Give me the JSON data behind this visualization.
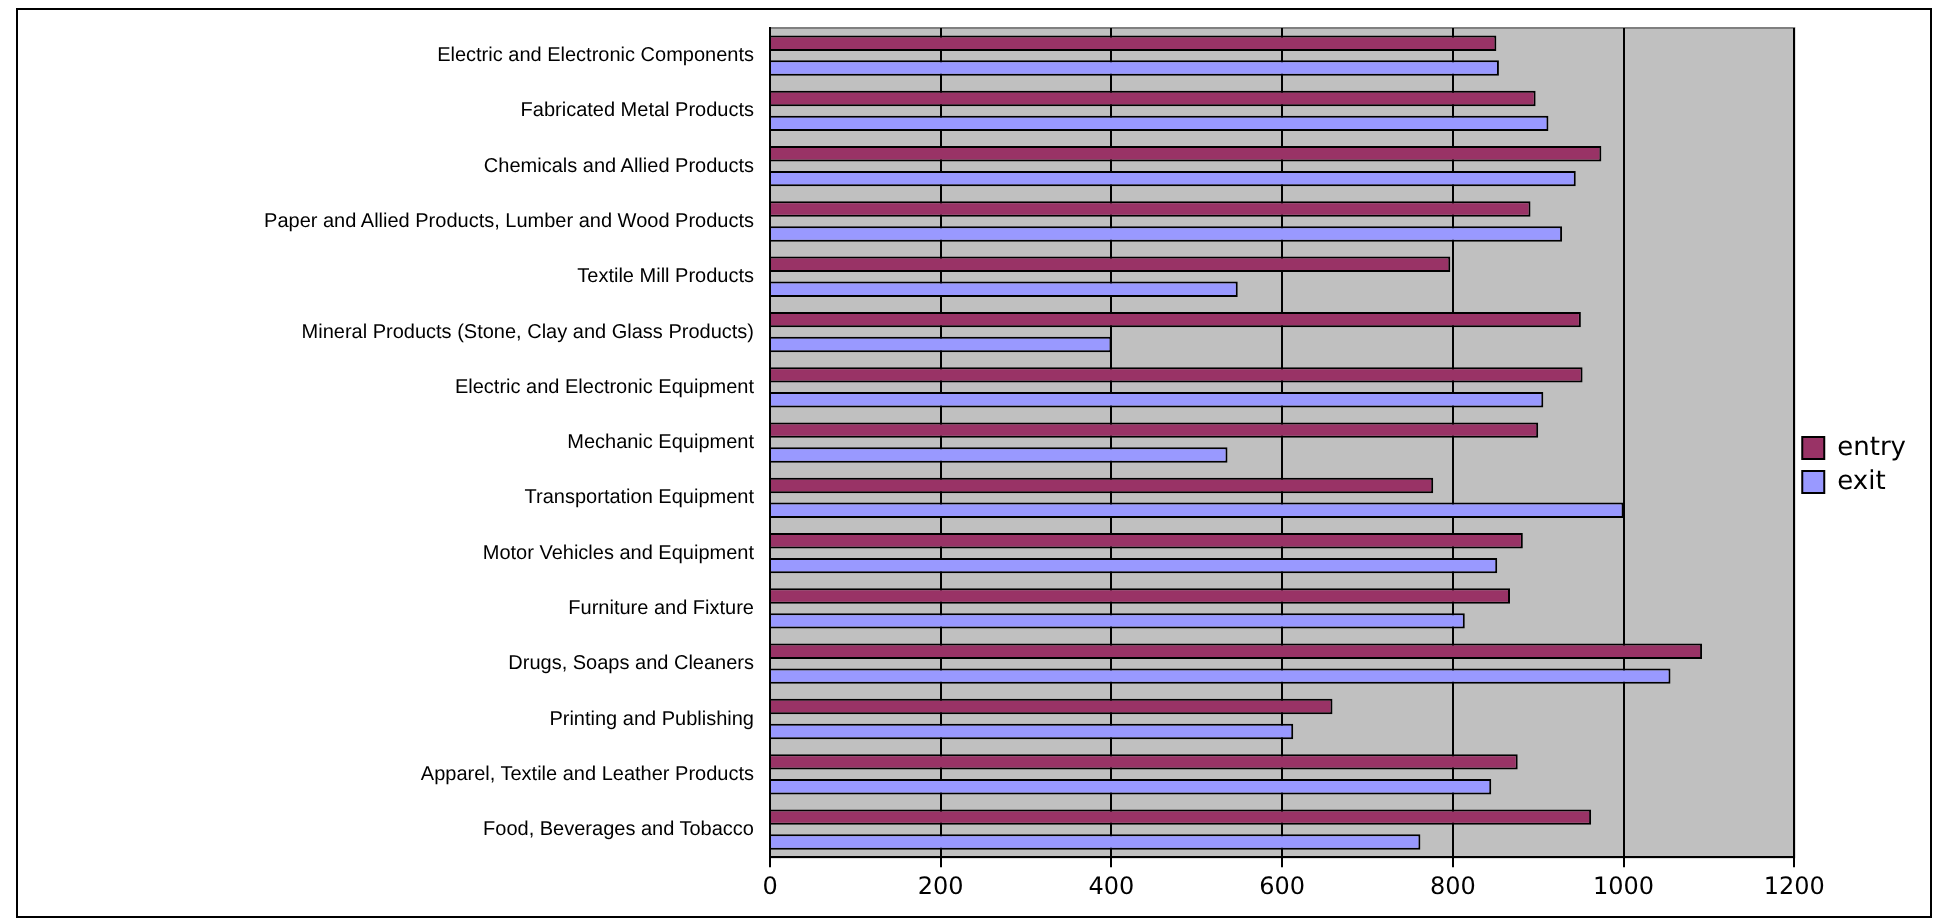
{
  "chart_data": {
    "type": "bar",
    "orientation": "horizontal",
    "categories": [
      "Electric and Electronic Components",
      "Fabricated Metal Products",
      "Chemicals and Allied Products",
      "Paper and Allied Products, Lumber and Wood Products",
      "Textile Mill Products",
      "Mineral Products (Stone, Clay and Glass Products)",
      "Electric and Electronic Equipment",
      "Mechanic Equipment",
      "Transportation Equipment",
      "Motor Vehicles and Equipment",
      "Furniture and Fixture",
      "Drugs, Soaps and Cleaners",
      "Printing and Publishing",
      "Apparel, Textile and Leather Products",
      "Food, Beverages and Tobacco"
    ],
    "series": [
      {
        "name": "entry",
        "color": "#993366",
        "values": [
          851,
          897,
          974,
          891,
          797,
          950,
          952,
          900,
          777,
          882,
          867,
          1092,
          659,
          876,
          962
        ]
      },
      {
        "name": "exit",
        "color": "#9999ff",
        "values": [
          854,
          912,
          944,
          928,
          548,
          400,
          906,
          536,
          1000,
          852,
          814,
          1055,
          613,
          845,
          762
        ]
      }
    ],
    "xlim": [
      0,
      1200
    ],
    "xticks": [
      0,
      200,
      400,
      600,
      800,
      1000,
      1200
    ],
    "grid": "x",
    "legend": "right"
  }
}
